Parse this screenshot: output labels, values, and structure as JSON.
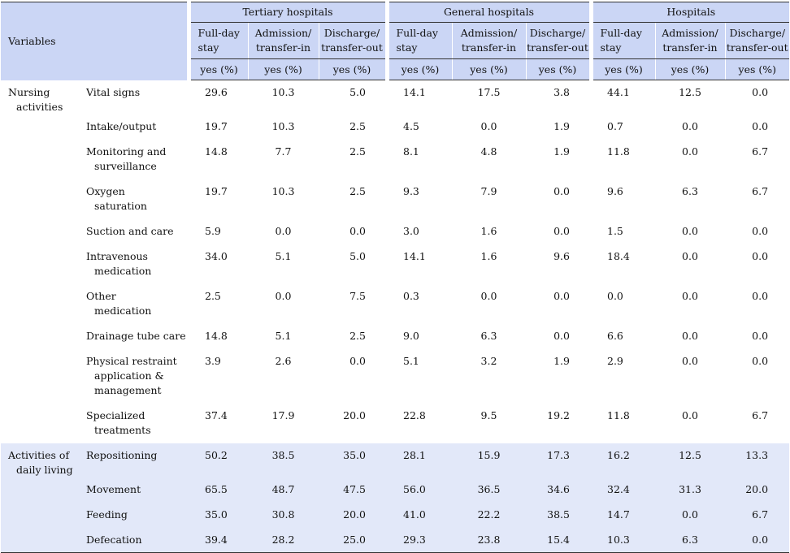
{
  "header": {
    "variables": "Variables",
    "groups": [
      "Tertiary hospitals",
      "General hospitals",
      "Hospitals"
    ],
    "subheads": [
      [
        "Full-day",
        "stay"
      ],
      [
        "Admission/",
        "transfer-in"
      ],
      [
        "Discharge/",
        "transfer-out"
      ]
    ],
    "unit": "yes (%)"
  },
  "sections": [
    {
      "category": [
        "Nursing",
        "activities"
      ],
      "rows": [
        {
          "label": [
            "Vital signs"
          ],
          "values": [
            "29.6",
            "10.3",
            "5.0",
            "14.1",
            "17.5",
            "3.8",
            "44.1",
            "12.5",
            "0.0"
          ]
        },
        {
          "label": [
            "Intake/output"
          ],
          "values": [
            "19.7",
            "10.3",
            "2.5",
            "4.5",
            "0.0",
            "1.9",
            "0.7",
            "0.0",
            "0.0"
          ]
        },
        {
          "label": [
            "Monitoring and",
            "surveillance"
          ],
          "values": [
            "14.8",
            "7.7",
            "2.5",
            "8.1",
            "4.8",
            "1.9",
            "11.8",
            "0.0",
            "6.7"
          ]
        },
        {
          "label": [
            "Oxygen",
            "saturation"
          ],
          "values": [
            "19.7",
            "10.3",
            "2.5",
            "9.3",
            "7.9",
            "0.0",
            "9.6",
            "6.3",
            "6.7"
          ]
        },
        {
          "label": [
            "Suction and care"
          ],
          "values": [
            "5.9",
            "0.0",
            "0.0",
            "3.0",
            "1.6",
            "0.0",
            "1.5",
            "0.0",
            "0.0"
          ]
        },
        {
          "label": [
            "Intravenous",
            "medication"
          ],
          "values": [
            "34.0",
            "5.1",
            "5.0",
            "14.1",
            "1.6",
            "9.6",
            "18.4",
            "0.0",
            "0.0"
          ]
        },
        {
          "label": [
            "Other",
            "medication"
          ],
          "values": [
            "2.5",
            "0.0",
            "7.5",
            "0.3",
            "0.0",
            "0.0",
            "0.0",
            "0.0",
            "0.0"
          ]
        },
        {
          "label": [
            "Drainage tube care"
          ],
          "values": [
            "14.8",
            "5.1",
            "2.5",
            "9.0",
            "6.3",
            "0.0",
            "6.6",
            "0.0",
            "0.0"
          ]
        },
        {
          "label": [
            "Physical restraint",
            "application &",
            "management"
          ],
          "values": [
            "3.9",
            "2.6",
            "0.0",
            "5.1",
            "3.2",
            "1.9",
            "2.9",
            "0.0",
            "0.0"
          ]
        },
        {
          "label": [
            "Specialized",
            "treatments"
          ],
          "values": [
            "37.4",
            "17.9",
            "20.0",
            "22.8",
            "9.5",
            "19.2",
            "11.8",
            "0.0",
            "6.7"
          ]
        }
      ]
    },
    {
      "category": [
        "Activities of",
        "daily living"
      ],
      "rows": [
        {
          "label": [
            "Repositioning"
          ],
          "values": [
            "50.2",
            "38.5",
            "35.0",
            "28.1",
            "15.9",
            "17.3",
            "16.2",
            "12.5",
            "13.3"
          ]
        },
        {
          "label": [
            "Movement"
          ],
          "values": [
            "65.5",
            "48.7",
            "47.5",
            "56.0",
            "36.5",
            "34.6",
            "32.4",
            "31.3",
            "20.0"
          ]
        },
        {
          "label": [
            "Feeding"
          ],
          "values": [
            "35.0",
            "30.8",
            "20.0",
            "41.0",
            "22.2",
            "38.5",
            "14.7",
            "0.0",
            "6.7"
          ]
        },
        {
          "label": [
            "Defecation"
          ],
          "values": [
            "39.4",
            "28.2",
            "25.0",
            "29.3",
            "23.8",
            "15.4",
            "10.3",
            "6.3",
            "0.0"
          ]
        }
      ]
    }
  ],
  "colors": {
    "header_bg": "#cbd6f5",
    "adl_bg": "#e2e8f9",
    "rule": "#333333"
  }
}
